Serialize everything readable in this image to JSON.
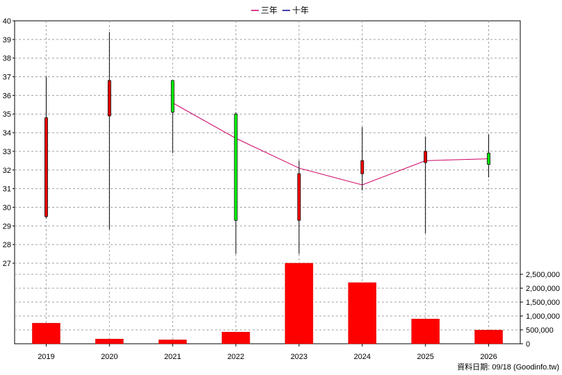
{
  "chart_data": {
    "type": "candlestick+bar",
    "legend": [
      {
        "name": "三年",
        "color": "#cc0066"
      },
      {
        "name": "十年",
        "color": "#000099"
      }
    ],
    "footer": "資料日期: 09/18  (Goodinfo.tw)",
    "x": [
      "2019",
      "2020",
      "2021",
      "2022",
      "2023",
      "2024",
      "2025",
      "2026"
    ],
    "price_axis": {
      "ylim": [
        27,
        40
      ],
      "ticks": [
        "27",
        "28",
        "29",
        "30",
        "31",
        "32",
        "33",
        "34",
        "35",
        "36",
        "37",
        "38",
        "39",
        "40"
      ]
    },
    "candles": [
      {
        "year": "2019",
        "open": 29.5,
        "high": 37.0,
        "low": 29.4,
        "close": 34.8,
        "color": "#ff0000"
      },
      {
        "year": "2020",
        "open": 34.9,
        "high": 39.4,
        "low": 28.8,
        "close": 36.8,
        "color": "#ff0000"
      },
      {
        "year": "2021",
        "open": 36.8,
        "high": 36.8,
        "low": 32.9,
        "close": 35.1,
        "color": "#00ff00"
      },
      {
        "year": "2022",
        "open": 35.0,
        "high": 35.1,
        "low": 27.5,
        "close": 29.3,
        "color": "#00ff00"
      },
      {
        "year": "2023",
        "open": 29.3,
        "high": 32.5,
        "low": 27.5,
        "close": 31.8,
        "color": "#ff0000"
      },
      {
        "year": "2024",
        "open": 31.8,
        "high": 34.3,
        "low": 30.9,
        "close": 32.5,
        "color": "#ff0000"
      },
      {
        "year": "2025",
        "open": 32.4,
        "high": 33.8,
        "low": 28.6,
        "close": 33.0,
        "color": "#ff0000"
      },
      {
        "year": "2026",
        "open": 32.9,
        "high": 33.9,
        "low": 31.6,
        "close": 32.3,
        "color": "#00ff00"
      }
    ],
    "line_series": {
      "name": "三年",
      "color": "#cc0066",
      "points": [
        {
          "x": "2021",
          "y": 35.6
        },
        {
          "x": "2022",
          "y": 33.7
        },
        {
          "x": "2023",
          "y": 32.1
        },
        {
          "x": "2024",
          "y": 31.2
        },
        {
          "x": "2025",
          "y": 32.5
        },
        {
          "x": "2026",
          "y": 32.6
        }
      ]
    },
    "volume_axis": {
      "ylim": [
        0,
        2900000
      ],
      "ticks": [
        "0",
        "500,000",
        "1,000,000",
        "1,500,000",
        "2,000,000",
        "2,500,000"
      ]
    },
    "volume": [
      {
        "year": "2019",
        "value": 740000
      },
      {
        "year": "2020",
        "value": 170000
      },
      {
        "year": "2021",
        "value": 140000
      },
      {
        "year": "2022",
        "value": 420000
      },
      {
        "year": "2023",
        "value": 2950000
      },
      {
        "year": "2024",
        "value": 2200000
      },
      {
        "year": "2025",
        "value": 890000
      },
      {
        "year": "2026",
        "value": 490000
      }
    ],
    "grid": true
  }
}
